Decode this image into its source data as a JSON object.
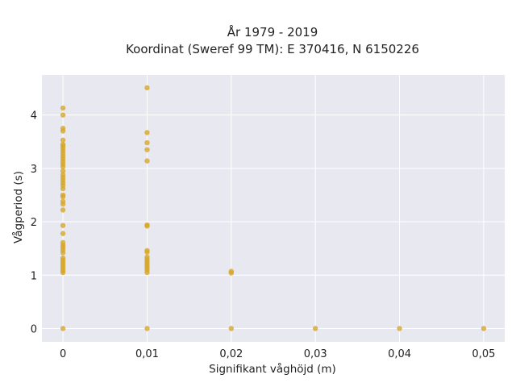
{
  "chart_data": {
    "type": "scatter",
    "title_line1": "År 1979 - 2019",
    "title_line2": "Koordinat (Sweref 99 TM): E 370416, N 6150226",
    "xlabel": "Signifikant våghöjd (m)",
    "ylabel": "Vågperiod (s)",
    "xlim": [
      -0.0025,
      0.0525
    ],
    "ylim": [
      -0.25,
      4.75
    ],
    "x_ticks": [
      0,
      0.01,
      0.02,
      0.03,
      0.04,
      0.05
    ],
    "x_tick_labels": [
      "0",
      "0,01",
      "0,02",
      "0,03",
      "0,04",
      "0,05"
    ],
    "y_ticks": [
      0,
      1,
      2,
      3,
      4
    ],
    "y_tick_labels": [
      "0",
      "1",
      "2",
      "3",
      "4"
    ],
    "grid": true,
    "marker_color": "#D4A62A",
    "plot_bg": "#E8E8F0",
    "points": [
      {
        "x": 0,
        "y": 0
      },
      {
        "x": 0,
        "y": 1.05
      },
      {
        "x": 0,
        "y": 1.08
      },
      {
        "x": 0,
        "y": 1.12
      },
      {
        "x": 0,
        "y": 1.16
      },
      {
        "x": 0,
        "y": 1.2
      },
      {
        "x": 0,
        "y": 1.24
      },
      {
        "x": 0,
        "y": 1.28
      },
      {
        "x": 0,
        "y": 1.32
      },
      {
        "x": 0,
        "y": 1.42
      },
      {
        "x": 0,
        "y": 1.47
      },
      {
        "x": 0,
        "y": 1.52
      },
      {
        "x": 0,
        "y": 1.56
      },
      {
        "x": 0,
        "y": 1.61
      },
      {
        "x": 0,
        "y": 1.78
      },
      {
        "x": 0,
        "y": 1.93
      },
      {
        "x": 0,
        "y": 2.22
      },
      {
        "x": 0,
        "y": 2.33
      },
      {
        "x": 0,
        "y": 2.38
      },
      {
        "x": 0,
        "y": 2.47
      },
      {
        "x": 0,
        "y": 2.5
      },
      {
        "x": 0,
        "y": 2.62
      },
      {
        "x": 0,
        "y": 2.68
      },
      {
        "x": 0,
        "y": 2.73
      },
      {
        "x": 0,
        "y": 2.78
      },
      {
        "x": 0,
        "y": 2.83
      },
      {
        "x": 0,
        "y": 2.88
      },
      {
        "x": 0,
        "y": 2.95
      },
      {
        "x": 0,
        "y": 3.03
      },
      {
        "x": 0,
        "y": 3.08
      },
      {
        "x": 0,
        "y": 3.13
      },
      {
        "x": 0,
        "y": 3.18
      },
      {
        "x": 0,
        "y": 3.23
      },
      {
        "x": 0,
        "y": 3.28
      },
      {
        "x": 0,
        "y": 3.33
      },
      {
        "x": 0,
        "y": 3.38
      },
      {
        "x": 0,
        "y": 3.42
      },
      {
        "x": 0,
        "y": 3.45
      },
      {
        "x": 0,
        "y": 3.53
      },
      {
        "x": 0,
        "y": 3.7
      },
      {
        "x": 0,
        "y": 3.75
      },
      {
        "x": 0,
        "y": 4.0
      },
      {
        "x": 0,
        "y": 4.13
      },
      {
        "x": 0.01,
        "y": 0
      },
      {
        "x": 0.01,
        "y": 1.05
      },
      {
        "x": 0.01,
        "y": 1.1
      },
      {
        "x": 0.01,
        "y": 1.14
      },
      {
        "x": 0.01,
        "y": 1.18
      },
      {
        "x": 0.01,
        "y": 1.22
      },
      {
        "x": 0.01,
        "y": 1.26
      },
      {
        "x": 0.01,
        "y": 1.3
      },
      {
        "x": 0.01,
        "y": 1.34
      },
      {
        "x": 0.01,
        "y": 1.43
      },
      {
        "x": 0.01,
        "y": 1.46
      },
      {
        "x": 0.01,
        "y": 1.92
      },
      {
        "x": 0.01,
        "y": 1.94
      },
      {
        "x": 0.01,
        "y": 3.14
      },
      {
        "x": 0.01,
        "y": 3.35
      },
      {
        "x": 0.01,
        "y": 3.48
      },
      {
        "x": 0.01,
        "y": 3.67
      },
      {
        "x": 0.01,
        "y": 4.51
      },
      {
        "x": 0.02,
        "y": 0
      },
      {
        "x": 0.02,
        "y": 1.04
      },
      {
        "x": 0.02,
        "y": 1.07
      },
      {
        "x": 0.03,
        "y": 0
      },
      {
        "x": 0.04,
        "y": 0
      },
      {
        "x": 0.05,
        "y": 0
      }
    ]
  }
}
